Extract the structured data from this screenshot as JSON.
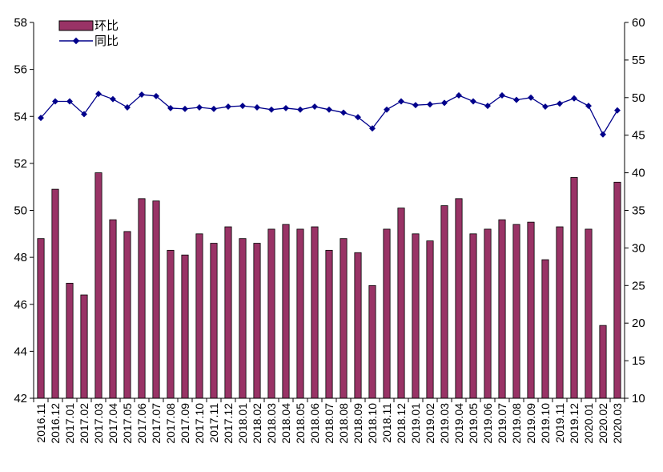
{
  "chart_data": {
    "type": "bar",
    "categories": [
      "2016.11",
      "2016.12",
      "2017.01",
      "2017.02",
      "2017.03",
      "2017.04",
      "2017.05",
      "2017.06",
      "2017.07",
      "2017.08",
      "2017.09",
      "2017.10",
      "2017.11",
      "2017.12",
      "2018.01",
      "2018.02",
      "2018.03",
      "2018.04",
      "2018.05",
      "2018.06",
      "2018.07",
      "2018.08",
      "2018.09",
      "2018.10",
      "2018.11",
      "2018.12",
      "2019.01",
      "2019.02",
      "2019.03",
      "2019.04",
      "2019.05",
      "2019.06",
      "2019.07",
      "2019.08",
      "2019.09",
      "2019.10",
      "2019.11",
      "2019.12",
      "2020.01",
      "2020.02",
      "2020.03"
    ],
    "series": [
      {
        "name": "环比",
        "type": "bar",
        "axis": "left",
        "color": "#993366",
        "values": [
          48.8,
          50.9,
          46.9,
          46.4,
          51.6,
          49.6,
          49.1,
          50.5,
          50.4,
          48.3,
          48.1,
          49.0,
          48.6,
          49.3,
          48.8,
          48.6,
          49.2,
          49.4,
          49.2,
          49.3,
          48.3,
          48.8,
          48.2,
          46.8,
          49.2,
          50.1,
          49.0,
          48.7,
          50.2,
          50.5,
          49.0,
          49.2,
          49.6,
          49.4,
          49.5,
          47.9,
          49.3,
          51.4,
          49.2,
          45.1,
          51.2
        ]
      },
      {
        "name": "同比",
        "type": "line",
        "axis": "right",
        "color": "#00008b",
        "values": [
          47.3,
          49.5,
          49.5,
          47.8,
          50.5,
          49.8,
          48.7,
          50.4,
          50.2,
          48.6,
          48.5,
          48.7,
          48.5,
          48.8,
          48.9,
          48.7,
          48.4,
          48.6,
          48.4,
          48.8,
          48.4,
          48.0,
          47.4,
          45.9,
          48.4,
          49.5,
          49.0,
          49.1,
          49.3,
          50.3,
          49.5,
          48.9,
          50.3,
          49.7,
          50.0,
          48.8,
          49.2,
          49.9,
          48.9,
          45.1,
          48.3
        ]
      }
    ],
    "y_left": {
      "min": 42,
      "max": 58,
      "ticks": [
        "42",
        "44",
        "46",
        "48",
        "50",
        "52",
        "54",
        "56",
        "58"
      ]
    },
    "y_right": {
      "min": 10,
      "max": 60,
      "ticks": [
        "10",
        "15",
        "20",
        "25",
        "30",
        "35",
        "40",
        "45",
        "50",
        "55",
        "60"
      ]
    },
    "legend": {
      "position": "top-left",
      "bar_label": "环比",
      "line_label": "同比"
    },
    "grid": false
  }
}
